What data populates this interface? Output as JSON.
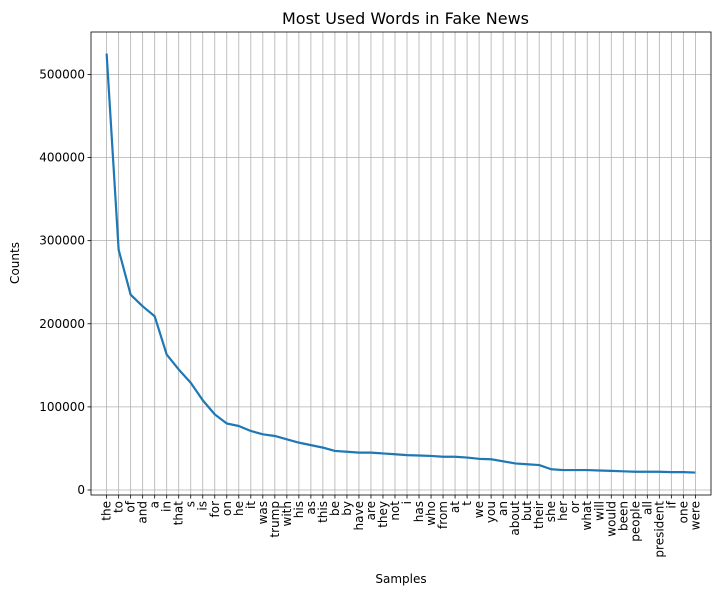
{
  "chart_data": {
    "type": "line",
    "title": "Most Used Words in Fake News",
    "xlabel": "Samples",
    "ylabel": "Counts",
    "ylim": [
      -6000,
      551000
    ],
    "yticks": [
      0,
      100000,
      200000,
      300000,
      400000,
      500000
    ],
    "grid": true,
    "line_color": "#1f77b4",
    "grid_color": "#b0b0b0",
    "categories": [
      "the",
      "to",
      "of",
      "and",
      "a",
      "in",
      "that",
      "s",
      "is",
      "for",
      "on",
      "he",
      "it",
      "was",
      "trump",
      "with",
      "his",
      "as",
      "this",
      "be",
      "by",
      "have",
      "are",
      "they",
      "not",
      "i",
      "has",
      "who",
      "from",
      "at",
      "t",
      "we",
      "you",
      "an",
      "about",
      "but",
      "their",
      "she",
      "her",
      "or",
      "what",
      "will",
      "would",
      "been",
      "people",
      "all",
      "president",
      "if",
      "one",
      "were"
    ],
    "series": [
      {
        "values": [
          525000,
          289000,
          235000,
          221000,
          209000,
          163000,
          145000,
          129000,
          108000,
          91000,
          80000,
          77000,
          71000,
          67000,
          65000,
          61000,
          57000,
          54000,
          51000,
          47000,
          46000,
          45000,
          45000,
          44000,
          43000,
          42000,
          41500,
          41000,
          40000,
          40000,
          39000,
          37500,
          37000,
          34500,
          32000,
          31000,
          30000,
          25000,
          24000,
          24000,
          24000,
          23500,
          23000,
          22500,
          22000,
          22000,
          22000,
          21500,
          21500,
          21000
        ]
      }
    ]
  }
}
